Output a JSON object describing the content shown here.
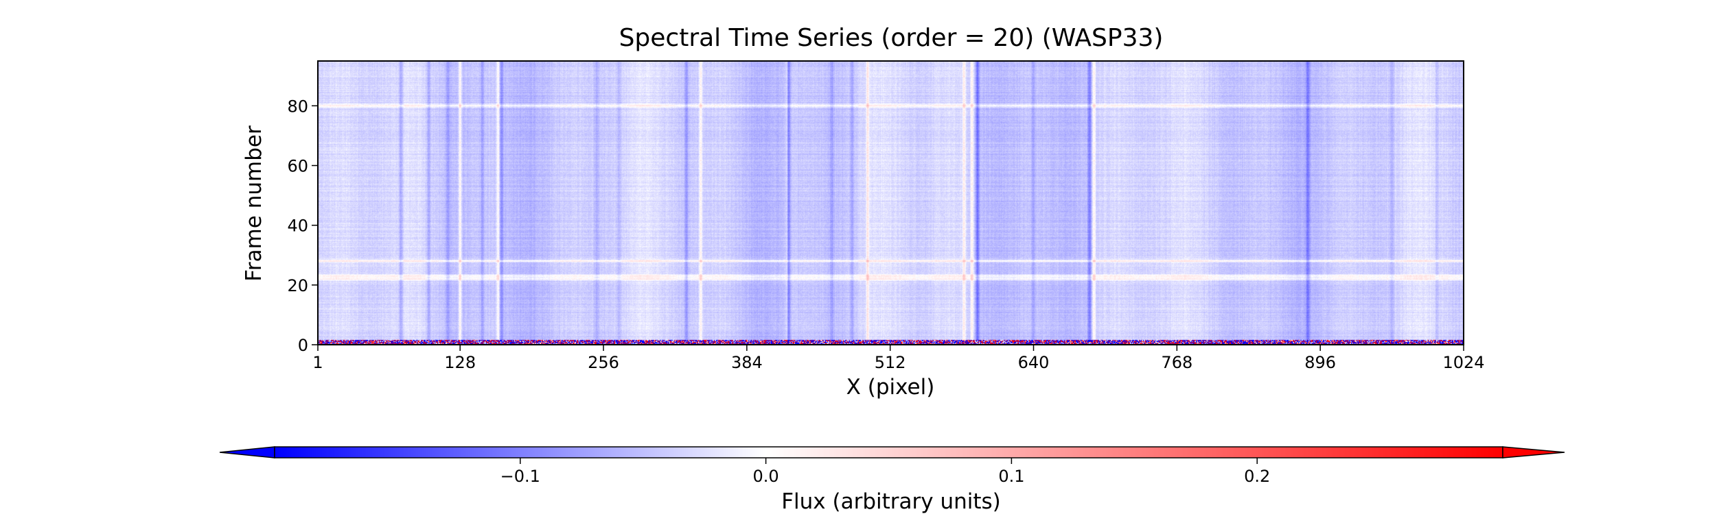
{
  "chart_data": {
    "type": "heatmap",
    "title": "Spectral Time Series (order = 20) (WASP33)",
    "xlabel": "X (pixel)",
    "ylabel": "Frame number",
    "xlim": [
      1,
      1024
    ],
    "ylim": [
      0,
      95
    ],
    "x_ticks": [
      "1",
      "128",
      "256",
      "384",
      "512",
      "640",
      "768",
      "896",
      "1024"
    ],
    "y_ticks": [
      "0",
      "20",
      "40",
      "60",
      "80"
    ],
    "colormap": "bwr",
    "background_flux": -0.04,
    "dark_columns": [
      {
        "x": 75,
        "strength": 0.5
      },
      {
        "x": 100,
        "strength": 0.35
      },
      {
        "x": 117,
        "strength": 0.35
      },
      {
        "x": 148,
        "strength": 0.35
      },
      {
        "x": 165,
        "strength": 0.45
      },
      {
        "x": 250,
        "strength": 0.3
      },
      {
        "x": 270,
        "strength": 0.3
      },
      {
        "x": 330,
        "strength": 0.45
      },
      {
        "x": 421,
        "strength": 0.85
      },
      {
        "x": 460,
        "strength": 0.3
      },
      {
        "x": 478,
        "strength": 0.3
      },
      {
        "x": 590,
        "strength": 0.75
      },
      {
        "x": 640,
        "strength": 0.3
      },
      {
        "x": 690,
        "strength": 0.7
      },
      {
        "x": 885,
        "strength": 0.55
      },
      {
        "x": 960,
        "strength": 0.3
      },
      {
        "x": 1000,
        "strength": 0.25
      }
    ],
    "bright_columns": [
      {
        "x": 128
      },
      {
        "x": 162
      },
      {
        "x": 343
      },
      {
        "x": 420
      },
      {
        "x": 492
      },
      {
        "x": 578
      },
      {
        "x": 585
      },
      {
        "x": 694
      }
    ],
    "bright_rows": [
      {
        "y": 22
      },
      {
        "y": 23
      },
      {
        "y": 28
      },
      {
        "y": 80
      }
    ],
    "noisy_row": {
      "y": 0,
      "note": "frame 0 mixed red/blue pixels"
    },
    "colorbar": {
      "label": "Flux (arbitrary units)",
      "range": [
        -0.2,
        0.3
      ],
      "ticks": [
        "−0.1",
        "0.0",
        "0.1",
        "0.2"
      ],
      "extend": "both",
      "colors": [
        "#0000ff",
        "#ffffff",
        "#ff0000"
      ]
    }
  }
}
